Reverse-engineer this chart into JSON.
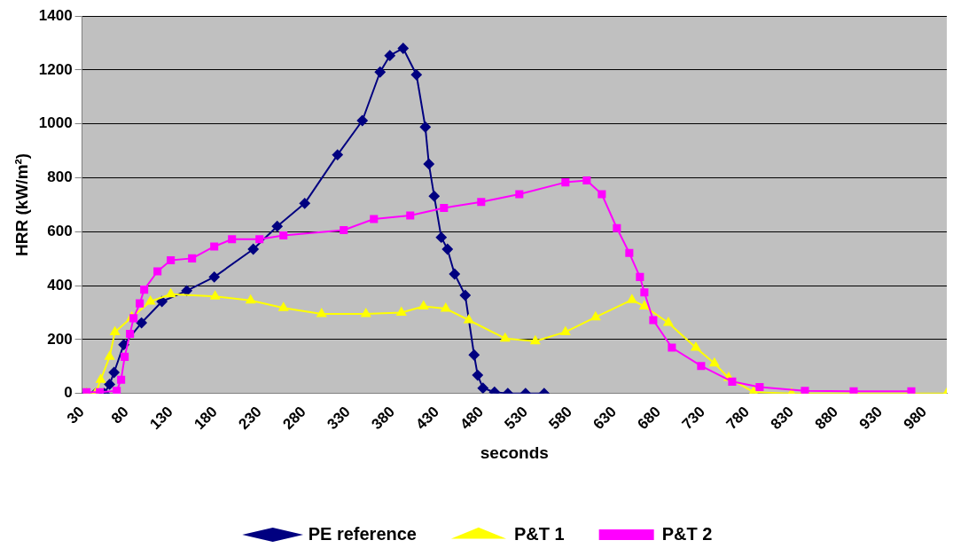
{
  "chart_data": {
    "type": "line",
    "xlabel": "seconds",
    "ylabel": "HRR (kW/m²)",
    "xlim": [
      30,
      1005
    ],
    "xticks": [
      30,
      80,
      130,
      180,
      230,
      280,
      330,
      380,
      430,
      480,
      530,
      580,
      630,
      680,
      730,
      780,
      830,
      880,
      930,
      980
    ],
    "ylim": [
      0,
      1400
    ],
    "yticks": [
      0,
      200,
      400,
      600,
      800,
      1000,
      1200,
      1400
    ],
    "grid": "y",
    "legend": "bottom",
    "series": [
      {
        "name": "PE reference",
        "color": "#000080",
        "marker": "diamond",
        "x": [
          35,
          45,
          55,
          61,
          66,
          77,
          97,
          120,
          148,
          179,
          223,
          250,
          281,
          318,
          346,
          366,
          377,
          392,
          407,
          417,
          421,
          427,
          435,
          442,
          450,
          462,
          472,
          476,
          482,
          495,
          510,
          530,
          551
        ],
        "values": [
          0,
          0,
          0,
          34,
          78,
          181,
          262,
          341,
          381,
          432,
          535,
          620,
          705,
          885,
          1012,
          1192,
          1253,
          1280,
          1182,
          988,
          851,
          732,
          579,
          535,
          443,
          364,
          143,
          68,
          20,
          5,
          0,
          0,
          0
        ]
      },
      {
        "name": "P&T 1",
        "color": "#ffff00",
        "marker": "triangle",
        "x": [
          35,
          45,
          51,
          61,
          67,
          86,
          107,
          130,
          180,
          220,
          257,
          300,
          350,
          390,
          415,
          440,
          466,
          507,
          541,
          575,
          609,
          650,
          664,
          691,
          722,
          743,
          759,
          787,
          830,
          900,
          1005
        ],
        "values": [
          0,
          0,
          51,
          136,
          228,
          283,
          341,
          368,
          360,
          345,
          317,
          295,
          295,
          300,
          323,
          315,
          272,
          204,
          194,
          228,
          283,
          347,
          323,
          262,
          170,
          112,
          58,
          5,
          0,
          0,
          0
        ]
      },
      {
        "name": "P&T 2",
        "color": "#ff00ff",
        "marker": "square",
        "x": [
          35,
          50,
          69,
          74,
          78,
          84,
          88,
          95,
          100,
          115,
          130,
          154,
          179,
          199,
          230,
          257,
          325,
          359,
          400,
          438,
          480,
          523,
          575,
          599,
          616,
          633,
          647,
          659,
          664,
          674,
          695,
          728,
          763,
          794,
          845,
          900,
          965
        ],
        "values": [
          5,
          5,
          10,
          51,
          136,
          221,
          279,
          334,
          385,
          453,
          494,
          501,
          545,
          572,
          572,
          586,
          606,
          647,
          660,
          688,
          710,
          739,
          783,
          790,
          739,
          613,
          521,
          432,
          375,
          272,
          170,
          102,
          44,
          24,
          10,
          8,
          8
        ]
      }
    ]
  }
}
